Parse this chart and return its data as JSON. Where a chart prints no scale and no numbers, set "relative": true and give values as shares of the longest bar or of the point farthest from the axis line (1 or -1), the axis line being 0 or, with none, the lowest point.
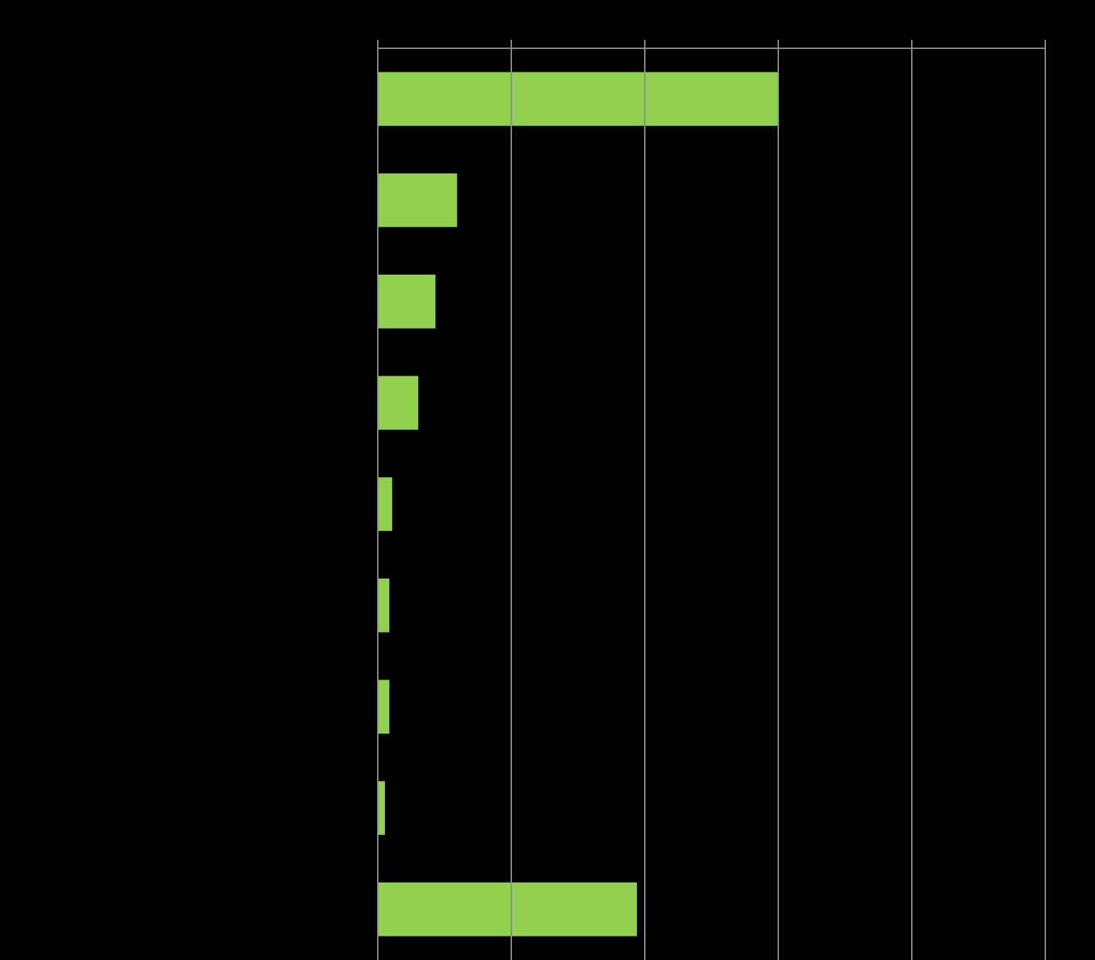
{
  "chart_data": {
    "type": "bar",
    "orientation": "horizontal",
    "relative": true,
    "categories": [
      null,
      null,
      null,
      null,
      null,
      null,
      null,
      null,
      null
    ],
    "values": [
      1,
      0.198,
      0.144,
      0.101,
      0.036,
      0.029,
      0.029,
      0.018,
      0.647
    ],
    "color": "#92d050"
  }
}
